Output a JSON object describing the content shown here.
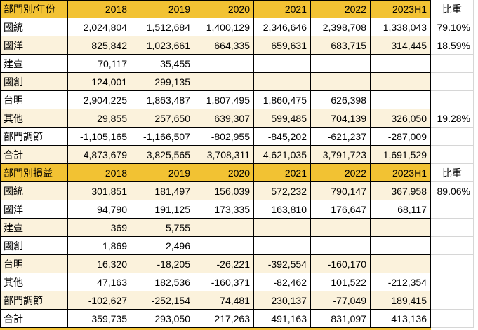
{
  "palette": {
    "header_bg": "#F2C233",
    "band_bg": "#FBF2DC",
    "cell_bg": "#FFFFFF",
    "border": "#000000",
    "gridline": "#D6D6D6",
    "text": "#000000"
  },
  "table1": {
    "title": "部門別/年份",
    "header": [
      "部門別/年份",
      "2018",
      "2019",
      "2020",
      "2021",
      "2022",
      "2023H1",
      "比重"
    ],
    "rows": [
      {
        "label": "國統",
        "values": [
          "2,024,804",
          "1,512,684",
          "1,400,129",
          "2,346,646",
          "2,398,708",
          "1,338,043"
        ],
        "ratio": "79.10%"
      },
      {
        "label": "國洋",
        "values": [
          "825,842",
          "1,023,661",
          "664,335",
          "659,631",
          "683,715",
          "314,445"
        ],
        "ratio": "18.59%"
      },
      {
        "label": "建壹",
        "values": [
          "70,117",
          "35,455",
          "",
          "",
          "",
          ""
        ],
        "ratio": ""
      },
      {
        "label": "國創",
        "values": [
          "124,001",
          "299,135",
          "",
          "",
          "",
          ""
        ],
        "ratio": ""
      },
      {
        "label": "台明",
        "values": [
          "2,904,225",
          "1,863,487",
          "1,807,495",
          "1,860,475",
          "626,398",
          ""
        ],
        "ratio": ""
      },
      {
        "label": "其他",
        "values": [
          "29,855",
          "257,650",
          "639,307",
          "599,485",
          "704,139",
          "326,050"
        ],
        "ratio": "19.28%"
      },
      {
        "label": "部門調節",
        "values": [
          "-1,105,165",
          "-1,166,507",
          "-802,955",
          "-845,202",
          "-621,237",
          "-287,009"
        ],
        "ratio": ""
      },
      {
        "label": "合計",
        "values": [
          "4,873,679",
          "3,825,565",
          "3,708,311",
          "4,621,035",
          "3,791,723",
          "1,691,529"
        ],
        "ratio": ""
      }
    ]
  },
  "table2": {
    "title": "部門別損益",
    "header": [
      "部門別損益",
      "2018",
      "2019",
      "2020",
      "2021",
      "2022",
      "2023H1",
      "比重"
    ],
    "rows": [
      {
        "label": "國統",
        "values": [
          "301,851",
          "181,497",
          "156,039",
          "572,232",
          "790,147",
          "367,958"
        ],
        "ratio": "89.06%"
      },
      {
        "label": "國洋",
        "values": [
          "94,790",
          "191,125",
          "173,335",
          "163,810",
          "176,647",
          "68,117"
        ],
        "ratio": ""
      },
      {
        "label": "建壹",
        "values": [
          "369",
          "5,755",
          "",
          "",
          "",
          ""
        ],
        "ratio": ""
      },
      {
        "label": "國創",
        "values": [
          "1,869",
          "2,496",
          "",
          "",
          "",
          ""
        ],
        "ratio": ""
      },
      {
        "label": "台明",
        "values": [
          "16,320",
          "-18,205",
          "-26,221",
          "-392,554",
          "-160,170",
          ""
        ],
        "ratio": ""
      },
      {
        "label": "其他",
        "values": [
          "47,163",
          "182,536",
          "-160,371",
          "-82,462",
          "101,522",
          "-212,354"
        ],
        "ratio": ""
      },
      {
        "label": "部門調節",
        "values": [
          "-102,627",
          "-252,154",
          "74,481",
          "230,137",
          "-77,049",
          "189,415"
        ],
        "ratio": ""
      },
      {
        "label": "合計",
        "values": [
          "359,735",
          "293,050",
          "217,263",
          "491,163",
          "831,097",
          "413,136"
        ],
        "ratio": ""
      }
    ]
  }
}
